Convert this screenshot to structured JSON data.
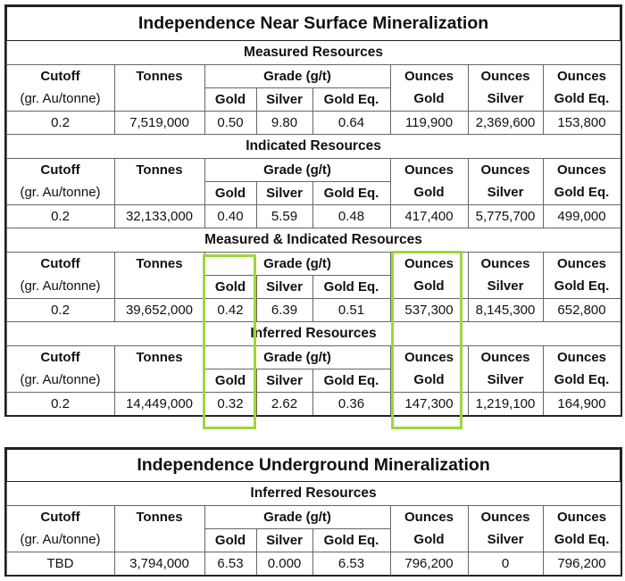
{
  "near_surface": {
    "title": "Independence Near Surface Mineralization",
    "columns": {
      "cutoff": "Cutoff",
      "cutoff_unit": "(gr. Au/tonne)",
      "tonnes": "Tonnes",
      "grade": "Grade (g/t)",
      "gold": "Gold",
      "silver": "Silver",
      "gold_eq": "Gold Eq.",
      "ounces": "Ounces"
    },
    "sections": [
      {
        "name": "Measured Resources",
        "row": {
          "cutoff": "0.2",
          "tonnes": "7,519,000",
          "gold": "0.50",
          "silver": "9.80",
          "gold_eq": "0.64",
          "oz_gold": "119,900",
          "oz_silver": "2,369,600",
          "oz_gold_eq": "153,800"
        }
      },
      {
        "name": "Indicated Resources",
        "row": {
          "cutoff": "0.2",
          "tonnes": "32,133,000",
          "gold": "0.40",
          "silver": "5.59",
          "gold_eq": "0.48",
          "oz_gold": "417,400",
          "oz_silver": "5,775,700",
          "oz_gold_eq": "499,000"
        }
      },
      {
        "name": "Measured & Indicated Resources",
        "row": {
          "cutoff": "0.2",
          "tonnes": "39,652,000",
          "gold": "0.42",
          "silver": "6.39",
          "gold_eq": "0.51",
          "oz_gold": "537,300",
          "oz_silver": "8,145,300",
          "oz_gold_eq": "652,800"
        }
      },
      {
        "name": "Inferred Resources",
        "row": {
          "cutoff": "0.2",
          "tonnes": "14,449,000",
          "gold": "0.32",
          "silver": "2.62",
          "gold_eq": "0.36",
          "oz_gold": "147,300",
          "oz_silver": "1,219,100",
          "oz_gold_eq": "164,900"
        }
      }
    ]
  },
  "underground": {
    "title": "Independence Underground Mineralization",
    "sections": [
      {
        "name": "Inferred Resources",
        "row": {
          "cutoff": "TBD",
          "tonnes": "3,794,000",
          "gold": "6.53",
          "silver": "0.000",
          "gold_eq": "6.53",
          "oz_gold": "796,200",
          "oz_silver": "0",
          "oz_gold_eq": "796,200"
        }
      }
    ]
  },
  "highlight_color": "#9fd63a"
}
